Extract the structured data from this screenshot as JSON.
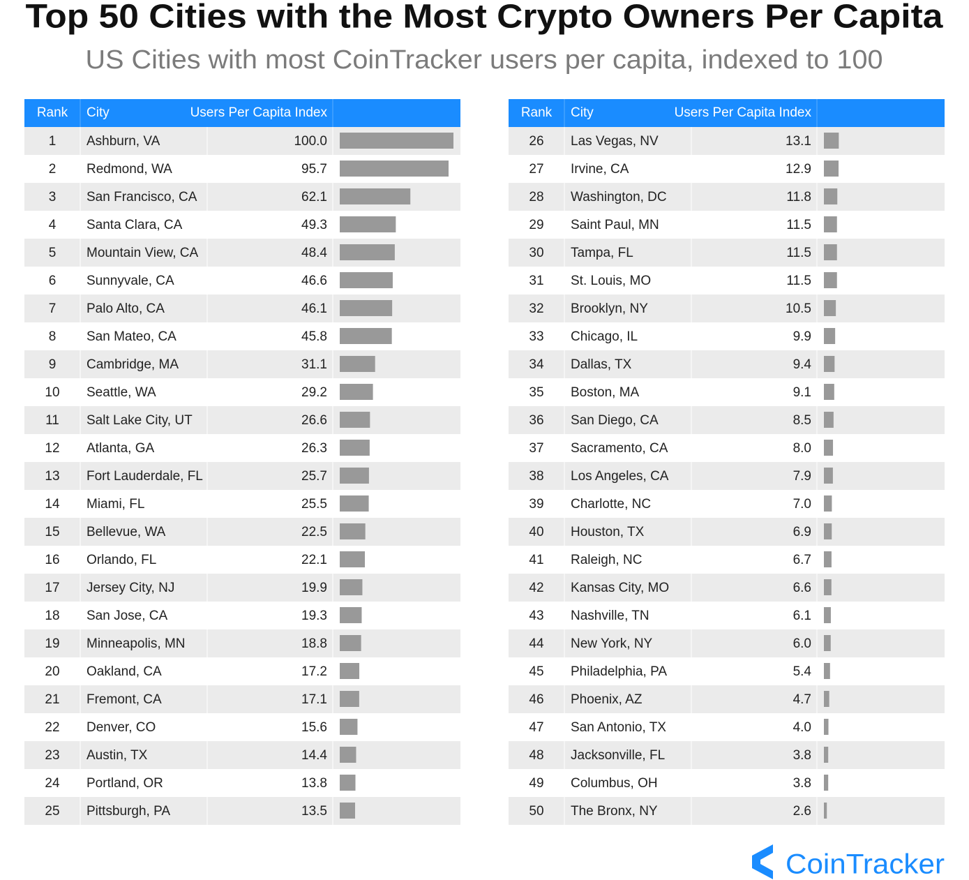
{
  "title": "Top 50 Cities with the Most Crypto Owners Per Capita",
  "subtitle": "US Cities with most CoinTracker users per capita, indexed to 100",
  "logo": "CoinTracker",
  "tables": [
    {
      "headers": [
        "Rank",
        "City",
        "Users Per Capita Index"
      ],
      "rank": [
        1,
        2,
        3,
        4,
        5,
        6,
        7,
        8,
        9,
        10,
        11,
        12,
        13,
        14,
        15,
        16,
        17,
        18,
        19,
        20,
        21,
        22,
        23,
        24,
        25
      ],
      "city": [
        "Ashburn, VA",
        "Redmond, WA",
        "San Francisco, CA",
        "Santa Clara, CA",
        "Mountain View, CA",
        "Sunnyvale, CA",
        "Palo Alto, CA",
        "San Mateo, CA",
        "Cambridge, MA",
        "Seattle, WA",
        "Salt Lake City, UT",
        "Atlanta, GA",
        "Fort Lauderdale, FL",
        "Miami, FL",
        "Bellevue, WA",
        "Orlando, FL",
        "Jersey City, NJ",
        "San Jose, CA",
        "Minneapolis, MN",
        "Oakland, CA",
        "Fremont, CA",
        "Denver, CO",
        "Austin, TX",
        "Portland, OR",
        "Pittsburgh, PA"
      ],
      "values": [
        100,
        95.7,
        62.1,
        49.3,
        48.4,
        46.6,
        46.1,
        45.8,
        31.1,
        29.2,
        26.6,
        26.3,
        25.7,
        25.5,
        22.5,
        22.1,
        19.9,
        19.3,
        18.8,
        17.2,
        17.1,
        15.6,
        14.4,
        13.8,
        13.5
      ],
      "value_labels": [
        "100.0",
        "95.7",
        "62.1",
        "49.3",
        "48.4",
        "46.6",
        "46.1",
        "45.8",
        "31.1",
        "29.2",
        "26.6",
        "26.3",
        "25.7",
        "25.5",
        "22.5",
        "22.1",
        "19.9",
        "19.3",
        "18.8",
        "17.2",
        "17.1",
        "15.6",
        "14.4",
        "13.8",
        "13.5"
      ]
    },
    {
      "headers": [
        "Rank",
        "City",
        "Users Per Capita Index"
      ],
      "rank": [
        26,
        27,
        28,
        29,
        30,
        31,
        32,
        33,
        34,
        35,
        36,
        37,
        38,
        39,
        40,
        41,
        42,
        43,
        44,
        45,
        46,
        47,
        48,
        49,
        50
      ],
      "city": [
        "Las Vegas, NV",
        "Irvine, CA",
        "Washington, DC",
        "Saint Paul, MN",
        "Tampa, FL",
        "St. Louis, MO",
        "Brooklyn, NY",
        "Chicago, IL",
        "Dallas, TX",
        "Boston, MA",
        "San Diego, CA",
        "Sacramento, CA",
        "Los Angeles, CA",
        "Charlotte, NC",
        "Houston, TX",
        "Raleigh, NC",
        "Kansas City, MO",
        "Nashville, TN",
        "New York, NY",
        "Philadelphia, PA",
        "Phoenix, AZ",
        "San Antonio, TX",
        "Jacksonville, FL",
        "Columbus, OH",
        "The Bronx, NY"
      ],
      "values": [
        13.1,
        12.9,
        11.8,
        11.5,
        11.5,
        11.5,
        10.5,
        9.9,
        9.4,
        9.1,
        8.5,
        8,
        7.9,
        7,
        6.9,
        6.7,
        6.6,
        6.1,
        6,
        5.4,
        4.7,
        4,
        3.8,
        3.8,
        2.6
      ],
      "value_labels": [
        "13.1",
        "12.9",
        "11.8",
        "11.5",
        "11.5",
        "11.5",
        "10.5",
        "9.9",
        "9.4",
        "9.1",
        "8.5",
        "8.0",
        "7.9",
        "7.0",
        "6.9",
        "6.7",
        "6.6",
        "6.1",
        "6.0",
        "5.4",
        "4.7",
        "4.0",
        "3.8",
        "3.8",
        "2.6"
      ]
    }
  ]
}
